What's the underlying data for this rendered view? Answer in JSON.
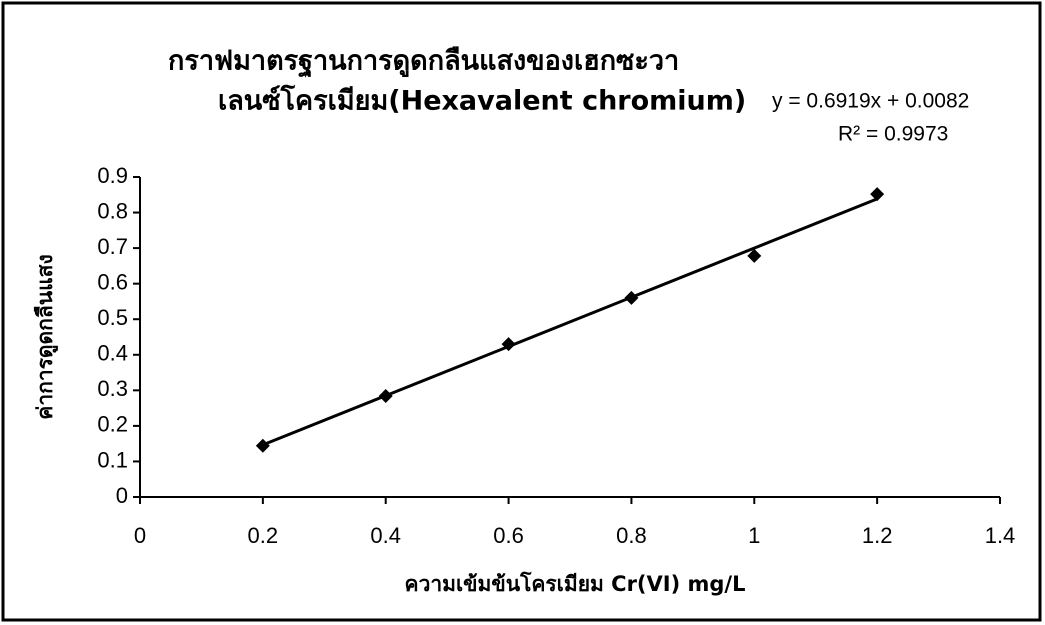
{
  "chart_data": {
    "type": "scatter",
    "title": [
      "กราฟมาตรฐานการดูดกลืนแสงของเฮกซะวา",
      "เลนซ์โครเมียม(Hexavalent chromium)"
    ],
    "x_label": "ความเข้มข้นโครเมียม Cr(VI) mg/L",
    "y_label": "ค่าการดูดกลืนแสง",
    "x": [
      0.2,
      0.4,
      0.6,
      0.8,
      1.0,
      1.2
    ],
    "values": [
      0.144,
      0.284,
      0.43,
      0.56,
      0.678,
      0.852
    ],
    "color": "#000000",
    "trendline": {
      "slope": 0.6919,
      "intercept": 0.0082,
      "label": "y = 0.6919x + 0.0082",
      "r2_label": "R² = 0.9973"
    },
    "xlim": [
      0,
      1.4
    ],
    "xticks": [
      0,
      0.2,
      0.4,
      0.6,
      0.8,
      1,
      1.2,
      1.4
    ],
    "ylim": [
      0,
      0.9
    ],
    "yticks": [
      0,
      0.1,
      0.2,
      0.3,
      0.4,
      0.5,
      0.6,
      0.7,
      0.8,
      0.9
    ],
    "grid": false
  }
}
